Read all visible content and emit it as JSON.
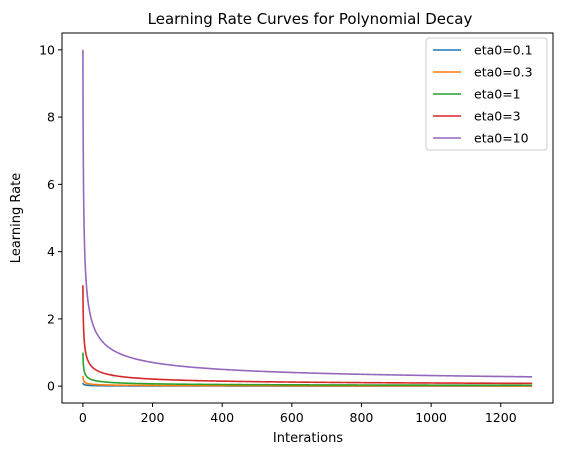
{
  "chart_data": {
    "type": "line",
    "title": "Learning Rate Curves for Polynomial Decay",
    "xlabel": "Interations",
    "ylabel": "Learning Rate",
    "xlim": [
      -60,
      1350
    ],
    "ylim": [
      -0.5,
      10.5
    ],
    "xticks": [
      0,
      200,
      400,
      600,
      800,
      1000,
      1200
    ],
    "yticks": [
      0,
      2,
      4,
      6,
      8,
      10
    ],
    "x_range": [
      0,
      1290
    ],
    "decay_exponent": 0.5,
    "legend_position": "top-right",
    "grid": false,
    "series": [
      {
        "name": "eta0=0.1",
        "eta0": 0.1,
        "color": "#1f77b4"
      },
      {
        "name": "eta0=0.3",
        "eta0": 0.3,
        "color": "#ff7f0e"
      },
      {
        "name": "eta0=1",
        "eta0": 1,
        "color": "#2ca02c"
      },
      {
        "name": "eta0=3",
        "eta0": 3,
        "color": "#d62728"
      },
      {
        "name": "eta0=10",
        "eta0": 10,
        "color": "#9467bd"
      }
    ]
  }
}
